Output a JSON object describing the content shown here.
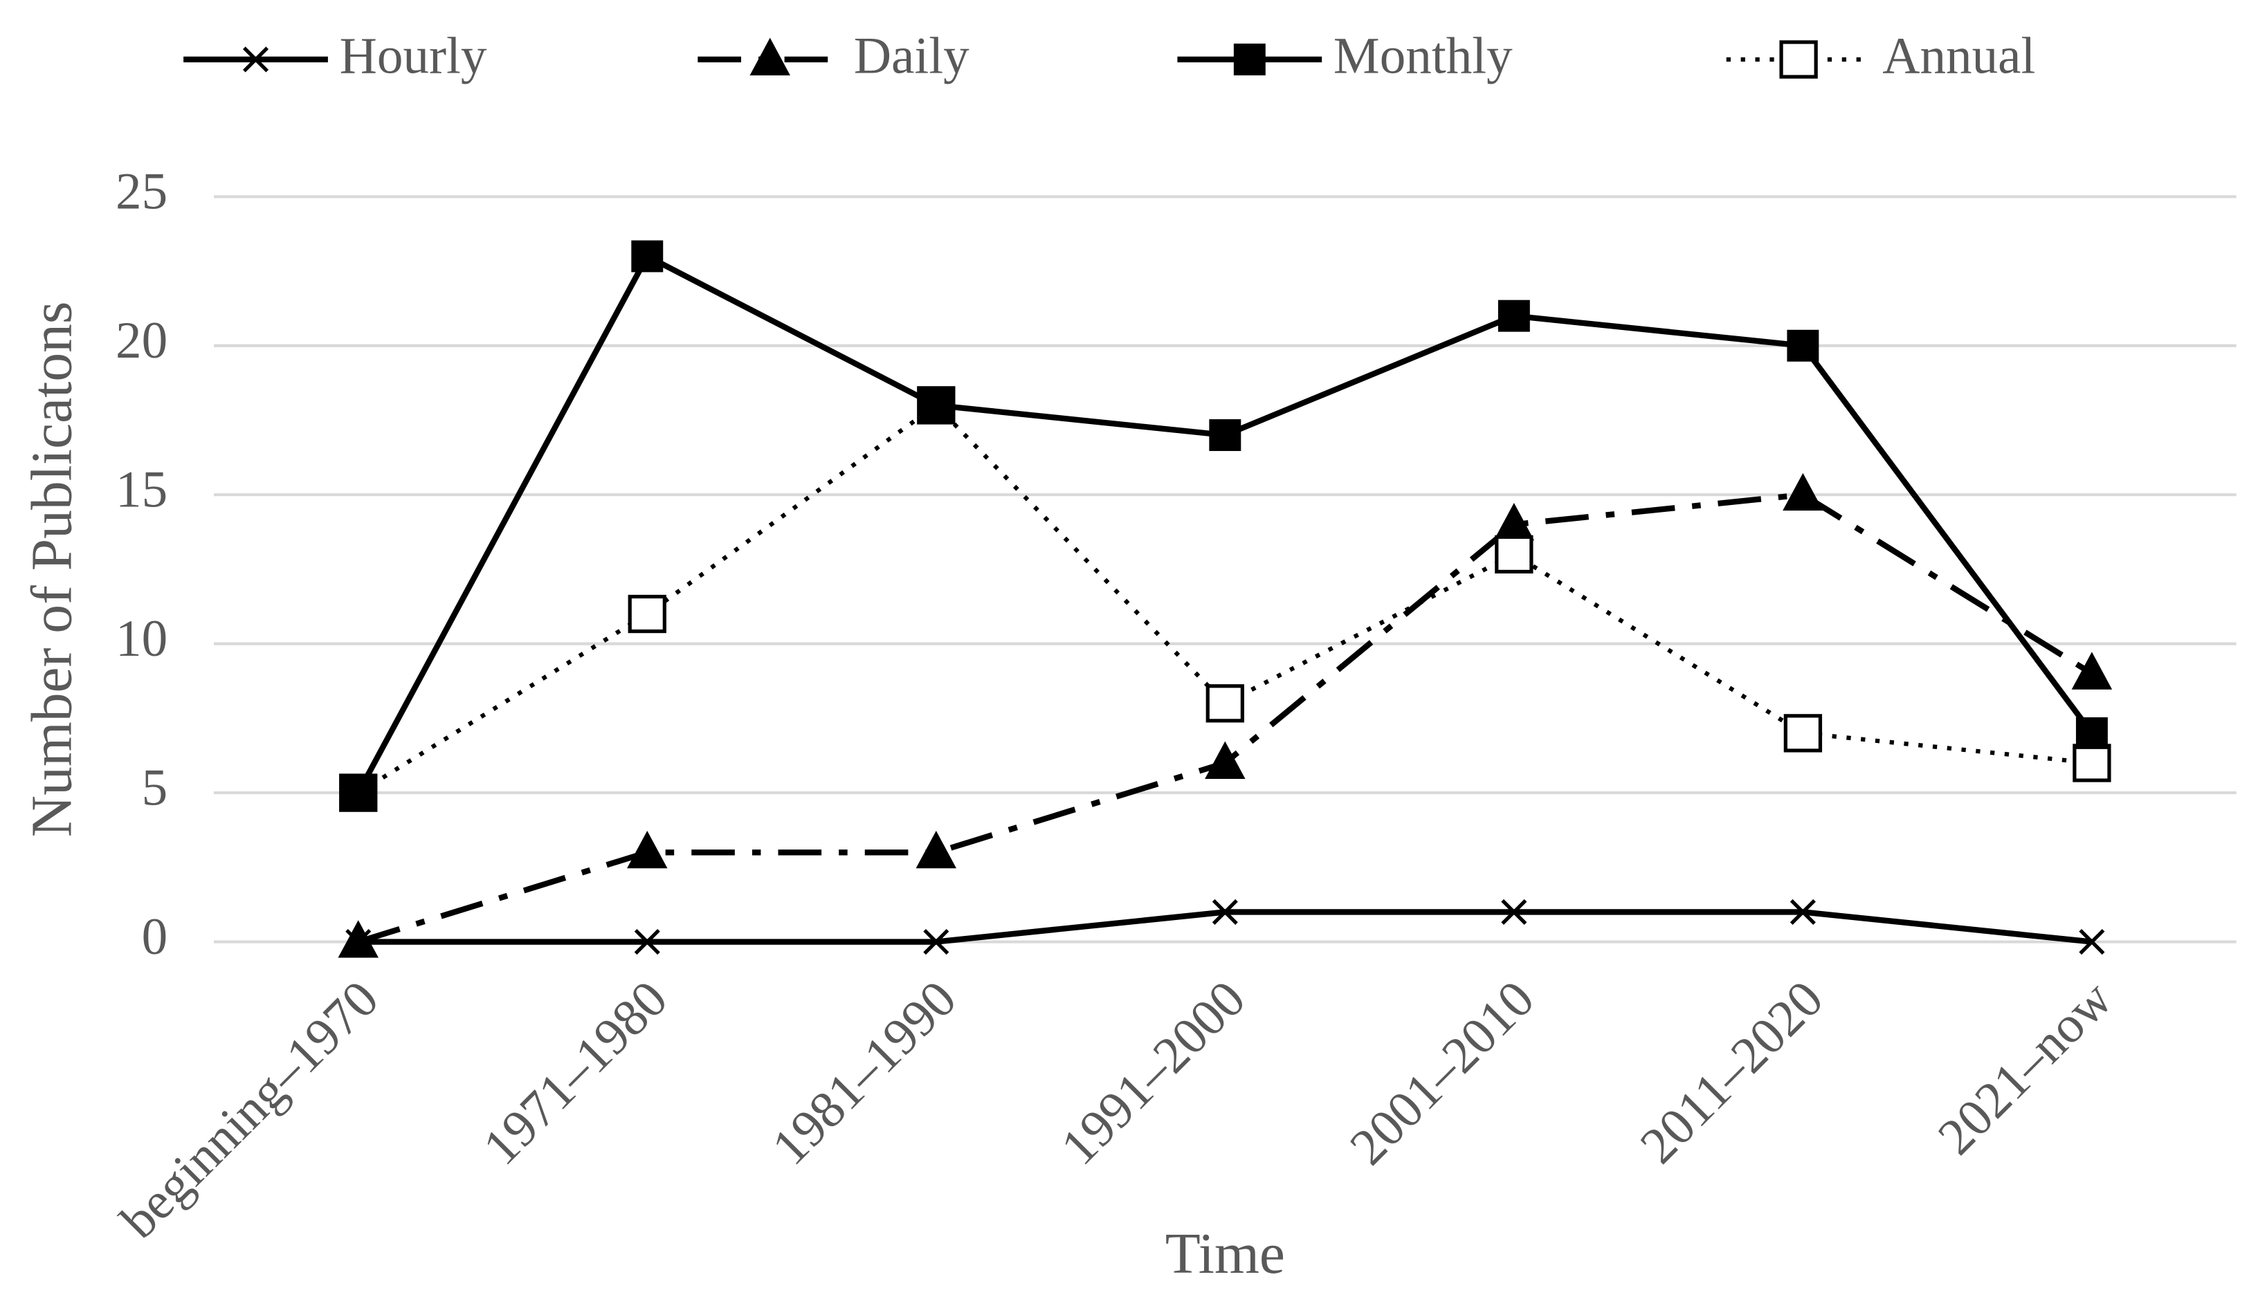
{
  "chart_data": {
    "type": "line",
    "categories": [
      "beginning–1970",
      "1971–1980",
      "1981–1990",
      "1991–2000",
      "2001–2010",
      "2011–2020",
      "2021–now"
    ],
    "series": [
      {
        "name": "Hourly",
        "color": "#000000",
        "marker": "x",
        "dash": "solid",
        "values": [
          0,
          0,
          0,
          1,
          1,
          1,
          0
        ]
      },
      {
        "name": "Daily",
        "color": "#000000",
        "marker": "triangle",
        "dash": "dash-dot",
        "values": [
          0,
          3,
          3,
          6,
          14,
          15,
          9
        ]
      },
      {
        "name": "Monthly",
        "color": "#000000",
        "marker": "square",
        "dash": "solid",
        "values": [
          5,
          23,
          18,
          17,
          21,
          20,
          7
        ]
      },
      {
        "name": "Annual",
        "color": "#000000",
        "marker": "open-square",
        "dash": "dot",
        "values": [
          5,
          11,
          18,
          8,
          13,
          7,
          6
        ]
      }
    ],
    "x_label": "Time",
    "y_label": "Number of Publicatons",
    "ylim": [
      0,
      25
    ],
    "yticks": [
      0,
      5,
      10,
      15,
      20,
      25
    ],
    "grid": true,
    "legend": "top"
  }
}
